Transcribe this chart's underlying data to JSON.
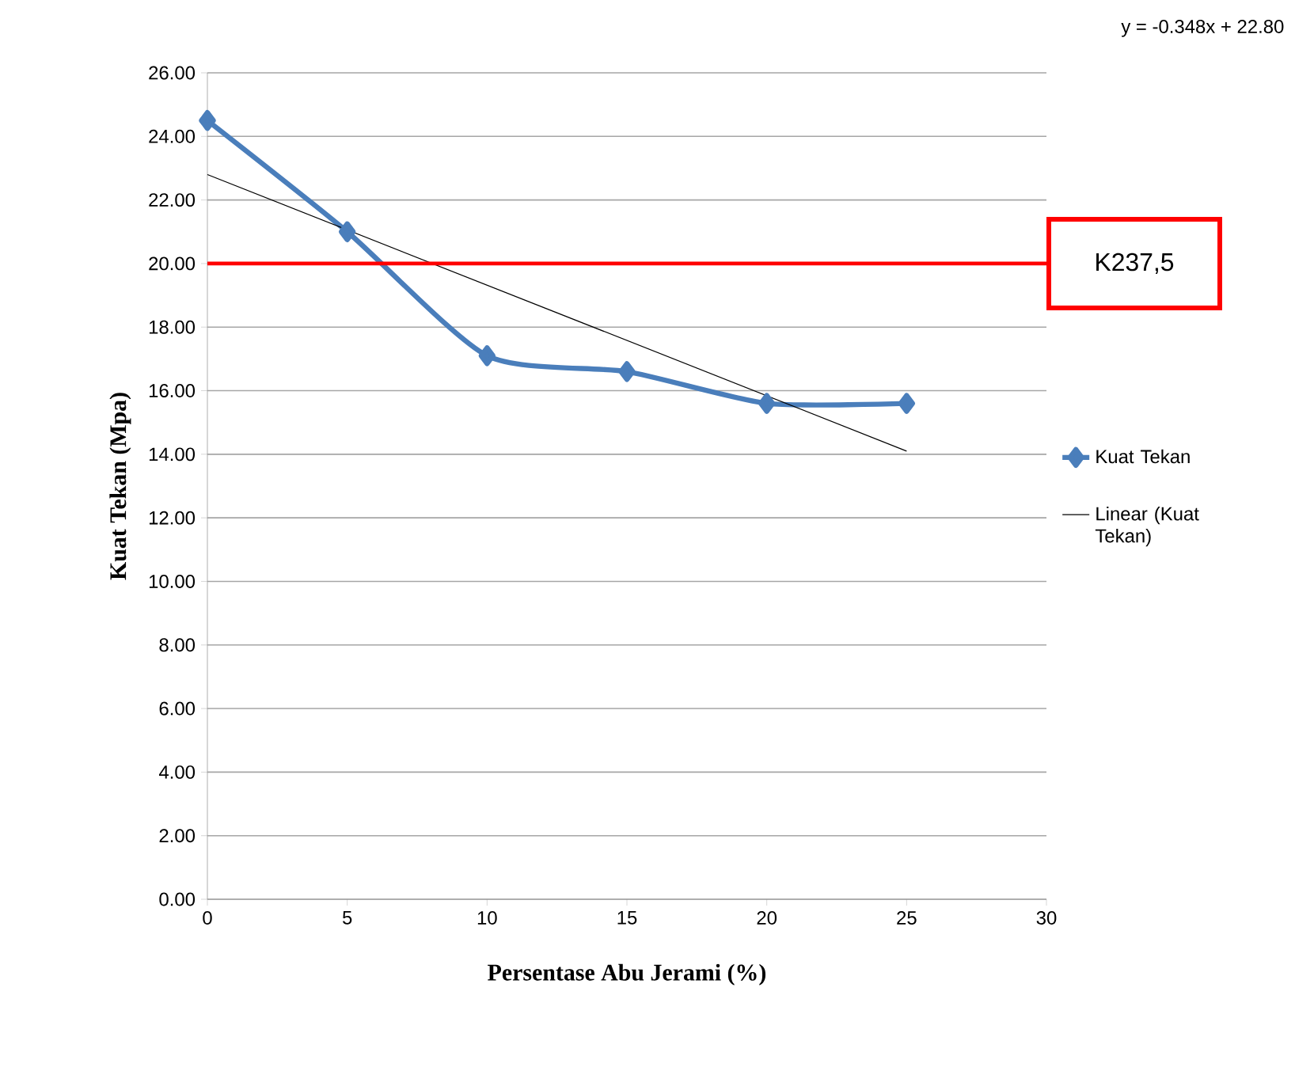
{
  "chart_data": {
    "type": "line",
    "xlabel": "Persentase Abu Jerami (%)",
    "ylabel": "Kuat Tekan (Mpa)",
    "xlim": [
      0,
      30
    ],
    "xticks": [
      0,
      5,
      10,
      15,
      20,
      25,
      30
    ],
    "ylim": [
      0,
      26
    ],
    "yticks": [
      {
        "value": 0,
        "label": "0.00"
      },
      {
        "value": 2,
        "label": "2.00"
      },
      {
        "value": 4,
        "label": "4.00"
      },
      {
        "value": 6,
        "label": "6.00"
      },
      {
        "value": 8,
        "label": "8.00"
      },
      {
        "value": 10,
        "label": "10.00"
      },
      {
        "value": 12,
        "label": "12.00"
      },
      {
        "value": 14,
        "label": "14.00"
      },
      {
        "value": 16,
        "label": "16.00"
      },
      {
        "value": 18,
        "label": "18.00"
      },
      {
        "value": 20,
        "label": "20.00"
      },
      {
        "value": 22,
        "label": "22.00"
      },
      {
        "value": 24,
        "label": "24.00"
      },
      {
        "value": 26,
        "label": "26.00"
      }
    ],
    "grid": "y",
    "legend": "right",
    "marker": "diamond",
    "series": [
      {
        "name": "Kuat Tekan",
        "color": "#4a7ebb",
        "x": [
          0,
          5,
          10,
          15,
          20,
          25
        ],
        "values": [
          24.5,
          21.0,
          17.1,
          16.6,
          15.6,
          15.6
        ]
      },
      {
        "name": "Linear (Kuat Tekan)",
        "color": "#000000",
        "marker": "none",
        "x": [
          0,
          25
        ],
        "values": [
          22.8,
          14.1
        ]
      }
    ],
    "ref_lines": [
      {
        "axis": "y",
        "value": 20,
        "label": "K237,5",
        "color": "#ff0000"
      }
    ],
    "annotations": [
      "y = -0.348x + 22.80"
    ]
  }
}
